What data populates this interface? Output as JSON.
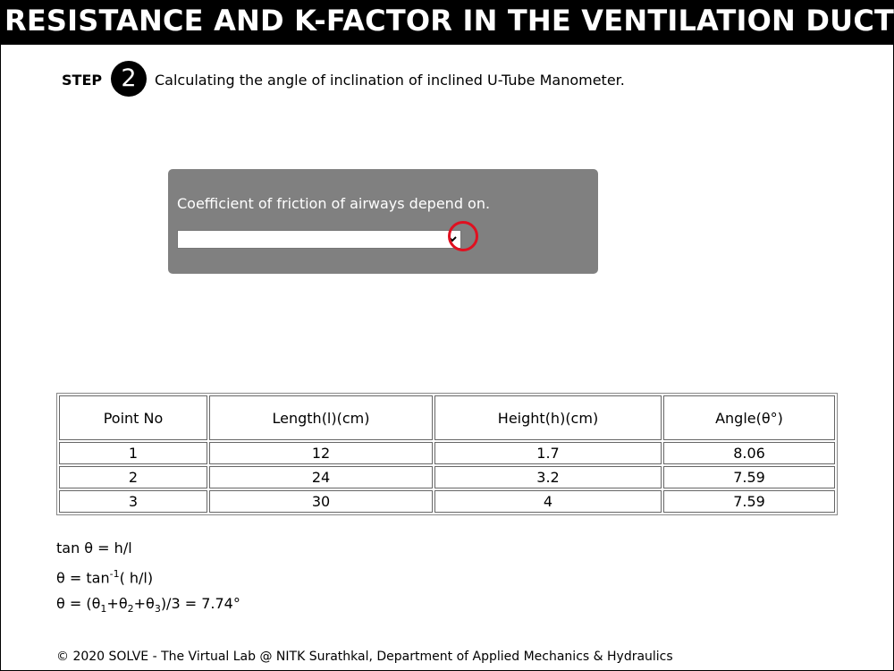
{
  "header": {
    "title": "RESISTANCE AND K-FACTOR IN THE VENTILATION DUCT"
  },
  "step": {
    "label": "STEP",
    "number": "2",
    "text": "Calculating the angle of inclination of inclined U-Tube Manometer."
  },
  "quiz": {
    "question": "Coefficient of friction of airways depend on.",
    "selected": ""
  },
  "table": {
    "headers": [
      "Point No",
      "Length(l)(cm)",
      "Height(h)(cm)",
      "Angle(θ°)"
    ],
    "rows": [
      [
        "1",
        "12",
        "1.7",
        "8.06"
      ],
      [
        "2",
        "24",
        "3.2",
        "7.59"
      ],
      [
        "3",
        "30",
        "4",
        "7.59"
      ]
    ]
  },
  "formulas": {
    "line1": "tan θ = h/l",
    "line2_a": "θ = tan",
    "line2_sup": "-1",
    "line2_b": "( h/l)",
    "line3_a": "θ = (θ",
    "line3_s1": "1",
    "line3_b": "+θ",
    "line3_s2": "2",
    "line3_c": "+θ",
    "line3_s3": "3",
    "line3_d": ")/3 = 7.74°"
  },
  "footer": {
    "text": "© 2020 SOLVE - The Virtual Lab @ NITK Surathkal, Department of Applied Mechanics & Hydraulics"
  },
  "colors": {
    "quiz_bg": "#808080",
    "highlight": "#e01020",
    "title_bg": "#000000"
  },
  "icons": {
    "dropdown": "chevron-down-icon"
  }
}
